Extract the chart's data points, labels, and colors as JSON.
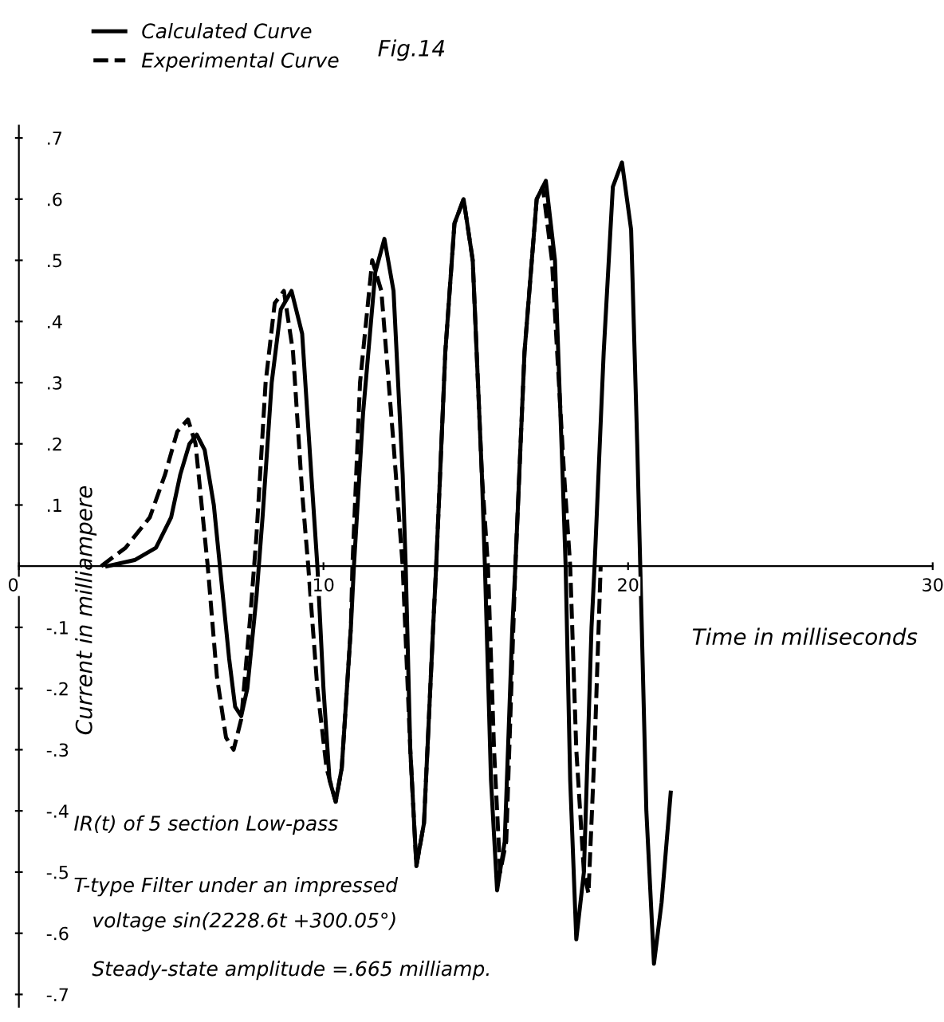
{
  "chart_data": {
    "type": "line",
    "title": "Fig.14",
    "xlabel": "Time in milliseconds",
    "ylabel": "Current in milliampere",
    "xlim": [
      0,
      30
    ],
    "xticks": [
      0,
      10,
      20,
      30
    ],
    "ylim": [
      -0.72,
      0.72
    ],
    "yticks": [
      {
        "value": -0.7,
        "label": "-.7"
      },
      {
        "value": -0.6,
        "label": "-.6"
      },
      {
        "value": -0.5,
        "label": "-.5"
      },
      {
        "value": -0.4,
        "label": "-.4"
      },
      {
        "value": -0.3,
        "label": "-.3"
      },
      {
        "value": -0.2,
        "label": "-.2"
      },
      {
        "value": -0.1,
        "label": "-.1"
      },
      {
        "value": 0.1,
        "label": ".1"
      },
      {
        "value": 0.2,
        "label": ".2"
      },
      {
        "value": 0.3,
        "label": ".3"
      },
      {
        "value": 0.4,
        "label": ".4"
      },
      {
        "value": 0.5,
        "label": ".5"
      },
      {
        "value": 0.6,
        "label": ".6"
      },
      {
        "value": 0.7,
        "label": ".7"
      }
    ],
    "grid": false,
    "legend": "top left",
    "marker": "none",
    "series": [
      {
        "name": "Calculated Curve",
        "color": "#000000",
        "line_style": "solid",
        "x": [
          2.9,
          3.8,
          4.5,
          5.0,
          5.3,
          5.6,
          5.84,
          6.1,
          6.4,
          6.6,
          6.9,
          7.1,
          7.3,
          7.5,
          7.8,
          8.0,
          8.3,
          8.6,
          8.95,
          9.3,
          9.6,
          9.8,
          10.0,
          10.2,
          10.4,
          10.6,
          10.9,
          11.0,
          11.3,
          11.7,
          12.0,
          12.3,
          12.6,
          12.7,
          12.85,
          13.05,
          13.3,
          13.6,
          13.7,
          14.0,
          14.3,
          14.6,
          14.9,
          15.2,
          15.3,
          15.5,
          15.7,
          15.95,
          16.2,
          16.3,
          16.6,
          17.0,
          17.3,
          17.6,
          17.85,
          17.95,
          18.1,
          18.3,
          18.55,
          18.8,
          18.9,
          19.2,
          19.5,
          19.8,
          20.1,
          20.3,
          20.4,
          20.6,
          20.85,
          21.1,
          21.4
        ],
        "values": [
          0,
          0.01,
          0.03,
          0.08,
          0.15,
          0.2,
          0.215,
          0.19,
          0.1,
          0,
          -0.15,
          -0.23,
          -0.245,
          -0.2,
          -0.05,
          0.08,
          0.3,
          0.42,
          0.45,
          0.38,
          0.15,
          0,
          -0.2,
          -0.35,
          -0.385,
          -0.33,
          -0.1,
          0,
          0.25,
          0.48,
          0.535,
          0.45,
          0.15,
          0,
          -0.3,
          -0.49,
          -0.42,
          -0.1,
          0,
          0.35,
          0.56,
          0.6,
          0.5,
          0.15,
          0,
          -0.35,
          -0.53,
          -0.45,
          -0.1,
          0,
          0.35,
          0.6,
          0.63,
          0.5,
          0.15,
          0,
          -0.35,
          -0.61,
          -0.5,
          -0.1,
          0,
          0.35,
          0.62,
          0.66,
          0.55,
          0.2,
          0,
          -0.4,
          -0.65,
          -0.55,
          -0.37
        ]
      },
      {
        "name": "Experimental Curve",
        "color": "#000000",
        "line_style": "dashed",
        "x": [
          2.7,
          3.5,
          4.3,
          4.8,
          5.2,
          5.55,
          5.8,
          6.1,
          6.2,
          6.5,
          6.8,
          7.05,
          7.3,
          7.6,
          7.8,
          8.1,
          8.4,
          8.7,
          9.0,
          9.3,
          9.5,
          9.8,
          10.1,
          10.4,
          10.6,
          10.9,
          10.95,
          11.2,
          11.6,
          11.9,
          12.3,
          12.6,
          12.85,
          13.05,
          13.3,
          13.6,
          13.7,
          14.0,
          14.3,
          14.6,
          14.9,
          15.2,
          15.4,
          15.6,
          15.8,
          16.0,
          16.2,
          16.3,
          16.6,
          17.0,
          17.2,
          17.5,
          17.9,
          18.1,
          18.3,
          18.55,
          18.7,
          18.9,
          19.1
        ],
        "values": [
          0,
          0.03,
          0.08,
          0.15,
          0.22,
          0.24,
          0.2,
          0.05,
          0,
          -0.18,
          -0.28,
          -0.3,
          -0.25,
          -0.08,
          0.05,
          0.3,
          0.43,
          0.45,
          0.35,
          0.12,
          0,
          -0.2,
          -0.33,
          -0.385,
          -0.33,
          -0.1,
          0,
          0.3,
          0.5,
          0.45,
          0.2,
          0,
          -0.3,
          -0.49,
          -0.42,
          -0.1,
          0,
          0.35,
          0.56,
          0.6,
          0.5,
          0.15,
          0,
          -0.3,
          -0.5,
          -0.45,
          -0.15,
          0,
          0.35,
          0.6,
          0.62,
          0.5,
          0.15,
          0,
          -0.3,
          -0.5,
          -0.535,
          -0.3,
          0
        ]
      }
    ],
    "annotations": [
      "IR(t) of 5 section Low-pass",
      "T-type Filter under an impressed",
      "voltage sin(2228.6t +300.05°)",
      "Steady-state amplitude =.665 milliamp."
    ]
  }
}
